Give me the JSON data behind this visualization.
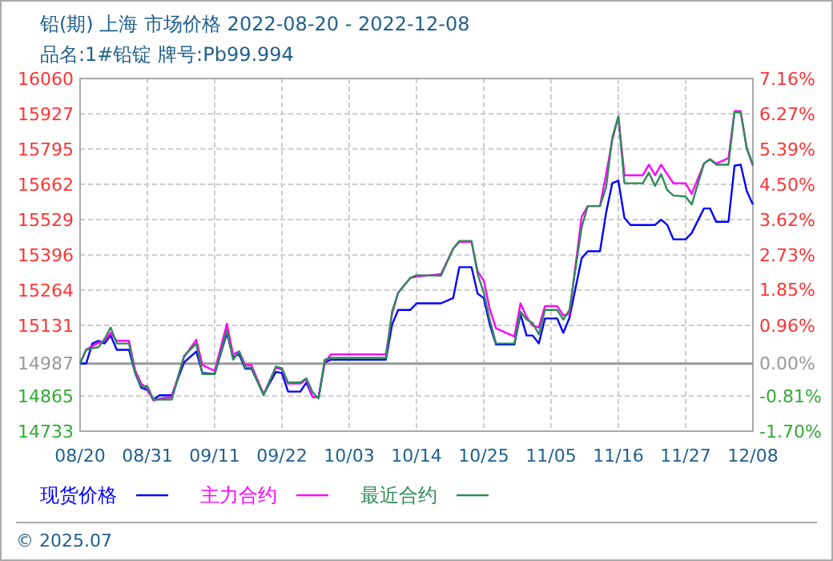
{
  "chart_data": {
    "type": "line",
    "title": "铅(期) 上海 市场价格 2022-08-20 - 2022-12-08",
    "subtitle": "品名:1#铅锭 牌号:Pb99.994",
    "x": [
      "2022-08-20",
      "2022-08-21",
      "2022-08-22",
      "2022-08-23",
      "2022-08-24",
      "2022-08-25",
      "2022-08-26",
      "2022-08-28",
      "2022-08-29",
      "2022-08-30",
      "2022-08-31",
      "2022-09-01",
      "2022-09-02",
      "2022-09-04",
      "2022-09-06",
      "2022-09-08",
      "2022-09-09",
      "2022-09-11",
      "2022-09-13",
      "2022-09-14",
      "2022-09-15",
      "2022-09-16",
      "2022-09-17",
      "2022-09-19",
      "2022-09-21",
      "2022-09-22",
      "2022-09-23",
      "2022-09-25",
      "2022-09-26",
      "2022-09-27",
      "2022-09-28",
      "2022-09-29",
      "2022-09-30",
      "2022-10-09",
      "2022-10-10",
      "2022-10-11",
      "2022-10-13",
      "2022-10-14",
      "2022-10-18",
      "2022-10-20",
      "2022-10-21",
      "2022-10-23",
      "2022-10-24",
      "2022-10-25",
      "2022-10-26",
      "2022-10-27",
      "2022-10-30",
      "2022-10-31",
      "2022-11-01",
      "2022-11-02",
      "2022-11-03",
      "2022-11-04",
      "2022-11-06",
      "2022-11-07",
      "2022-11-08",
      "2022-11-10",
      "2022-11-11",
      "2022-11-13",
      "2022-11-14",
      "2022-11-15",
      "2022-11-16",
      "2022-11-17",
      "2022-11-18",
      "2022-11-20",
      "2022-11-21",
      "2022-11-22",
      "2022-11-23",
      "2022-11-24",
      "2022-11-25",
      "2022-11-27",
      "2022-11-28",
      "2022-11-30",
      "2022-12-01",
      "2022-12-02",
      "2022-12-04",
      "2022-12-05",
      "2022-12-06",
      "2022-12-07",
      "2022-12-08"
    ],
    "series": [
      {
        "name": "现货价格",
        "color": "#0000ff",
        "values": [
          14988,
          14988,
          15063,
          15073,
          15063,
          15093,
          15039,
          15039,
          14952,
          14896,
          14888,
          14852,
          14868,
          14868,
          14992,
          15033,
          14952,
          14948,
          15103,
          15012,
          15022,
          14968,
          14968,
          14872,
          14956,
          14952,
          14882,
          14882,
          14916,
          14862,
          14862,
          14992,
          15002,
          15002,
          15133,
          15189,
          15189,
          15214,
          15214,
          15234,
          15350,
          15350,
          15250,
          15234,
          15133,
          15059,
          15059,
          15173,
          15093,
          15093,
          15063,
          15157,
          15157,
          15103,
          15159,
          15384,
          15410,
          15410,
          15555,
          15666,
          15676,
          15535,
          15509,
          15509,
          15509,
          15509,
          15529,
          15509,
          15455,
          15455,
          15479,
          15571,
          15571,
          15521,
          15521,
          15732,
          15736,
          15636,
          15586
        ]
      },
      {
        "name": "主力合约",
        "color": "#ff00ff",
        "values": [
          14988,
          15040,
          15053,
          15065,
          15073,
          15103,
          15073,
          15073,
          14962,
          14912,
          14892,
          14848,
          14855,
          14862,
          15012,
          15077,
          14982,
          14960,
          15137,
          15022,
          15033,
          14982,
          14982,
          14872,
          14972,
          14965,
          14912,
          14912,
          14928,
          14862,
          14862,
          14992,
          15022,
          15022,
          15173,
          15254,
          15310,
          15314,
          15324,
          15420,
          15445,
          15445,
          15334,
          15300,
          15190,
          15120,
          15089,
          15214,
          15163,
          15130,
          15123,
          15204,
          15204,
          15169,
          15173,
          15540,
          15580,
          15580,
          15700,
          15827,
          15917,
          15696,
          15696,
          15696,
          15736,
          15696,
          15736,
          15700,
          15666,
          15666,
          15626,
          15740,
          15756,
          15740,
          15760,
          15937,
          15937,
          15797,
          15732
        ]
      },
      {
        "name": "最近合约",
        "color": "#2e8b57",
        "values": [
          14988,
          15040,
          15045,
          15049,
          15080,
          15123,
          15063,
          15063,
          14952,
          14902,
          14902,
          14852,
          14852,
          14852,
          15016,
          15063,
          14948,
          14948,
          15113,
          15002,
          15033,
          14972,
          14972,
          14868,
          14976,
          14970,
          14916,
          14916,
          14932,
          14880,
          14856,
          15002,
          15009,
          15009,
          15183,
          15254,
          15310,
          15320,
          15318,
          15420,
          15449,
          15449,
          15324,
          15254,
          15150,
          15063,
          15063,
          15183,
          15153,
          15140,
          15097,
          15189,
          15189,
          15153,
          15189,
          15500,
          15580,
          15580,
          15650,
          15837,
          15917,
          15666,
          15666,
          15666,
          15706,
          15656,
          15700,
          15640,
          15620,
          15616,
          15586,
          15740,
          15756,
          15736,
          15736,
          15933,
          15933,
          15797,
          15736
        ]
      }
    ],
    "xlim": [
      "2022-08-20",
      "2022-12-08"
    ],
    "xticks": [
      {
        "value": "2022-08-20",
        "label": "08/20"
      },
      {
        "value": "2022-08-31",
        "label": "08/31"
      },
      {
        "value": "2022-09-11",
        "label": "09/11"
      },
      {
        "value": "2022-09-22",
        "label": "09/22"
      },
      {
        "value": "2022-10-03",
        "label": "10/03"
      },
      {
        "value": "2022-10-14",
        "label": "10/14"
      },
      {
        "value": "2022-10-25",
        "label": "10/25"
      },
      {
        "value": "2022-11-05",
        "label": "11/05"
      },
      {
        "value": "2022-11-16",
        "label": "11/16"
      },
      {
        "value": "2022-11-27",
        "label": "11/27"
      },
      {
        "value": "2022-12-08",
        "label": "12/08"
      }
    ],
    "ylim": [
      14733,
      16060
    ],
    "yticks": [
      14733,
      14865,
      14987,
      15131,
      15264,
      15396,
      15529,
      15662,
      15795,
      15927,
      16060
    ],
    "y2lim": [
      -1.7,
      7.16
    ],
    "y2ticks": [
      {
        "value": -1.7,
        "label": "-1.70%"
      },
      {
        "value": -0.81,
        "label": "-0.81%"
      },
      {
        "value": 0,
        "label": "0.00%"
      },
      {
        "value": 0.96,
        "label": "0.96%"
      },
      {
        "value": 1.85,
        "label": "1.85%"
      },
      {
        "value": 2.73,
        "label": "2.73%"
      },
      {
        "value": 3.62,
        "label": "3.62%"
      },
      {
        "value": 4.5,
        "label": "4.50%"
      },
      {
        "value": 5.39,
        "label": "5.39%"
      },
      {
        "value": 6.27,
        "label": "6.27%"
      },
      {
        "value": 7.16,
        "label": "7.16%"
      }
    ],
    "ref_lines": [
      {
        "axis": "y",
        "value": 14987,
        "color": "#999999"
      }
    ],
    "grid": true,
    "legend": "bottom",
    "line_style": "solid",
    "marker": "none",
    "annotations": [
      "© 2025.07"
    ]
  }
}
